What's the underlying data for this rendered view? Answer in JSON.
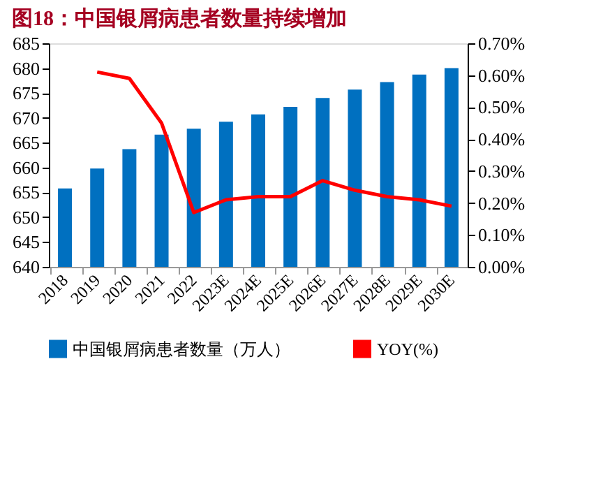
{
  "chart_data": {
    "type": "bar",
    "title": "图18：中国银屑病患者数量持续增加",
    "categories": [
      "2018",
      "2019",
      "2020",
      "2021",
      "2022",
      "2023E",
      "2024E",
      "2025E",
      "2026E",
      "2027E",
      "2028E",
      "2029E",
      "2030E"
    ],
    "series": [
      {
        "name": "中国银屑病患者数量（万人）",
        "color": "#0070c0",
        "values": [
          655.8,
          659.8,
          663.7,
          666.6,
          667.8,
          669.2,
          670.7,
          672.2,
          674.0,
          675.7,
          677.2,
          678.7,
          680.0
        ]
      },
      {
        "name": "YOY(%)",
        "type": "line",
        "axis": "y2",
        "color": "#ff0000",
        "values": [
          null,
          0.61,
          0.59,
          0.45,
          0.17,
          0.21,
          0.22,
          0.22,
          0.27,
          0.24,
          0.22,
          0.21,
          0.19
        ]
      }
    ],
    "ylim": [
      640,
      685
    ],
    "yticks": [
      640,
      645,
      650,
      655,
      660,
      665,
      670,
      675,
      680,
      685
    ],
    "y2lim": [
      0,
      0.7
    ],
    "y2ticks": [
      {
        "value": 0,
        "label": "0.00%"
      },
      {
        "value": 0.1,
        "label": "0.10%"
      },
      {
        "value": 0.2,
        "label": "0.20%"
      },
      {
        "value": 0.3,
        "label": "0.30%"
      },
      {
        "value": 0.4,
        "label": "0.40%"
      },
      {
        "value": 0.5,
        "label": "0.50%"
      },
      {
        "value": 0.6,
        "label": "0.60%"
      },
      {
        "value": 0.7,
        "label": "0.70%"
      }
    ],
    "grid": false,
    "legend": "bottom",
    "line_style": "solid",
    "marker": "none"
  }
}
